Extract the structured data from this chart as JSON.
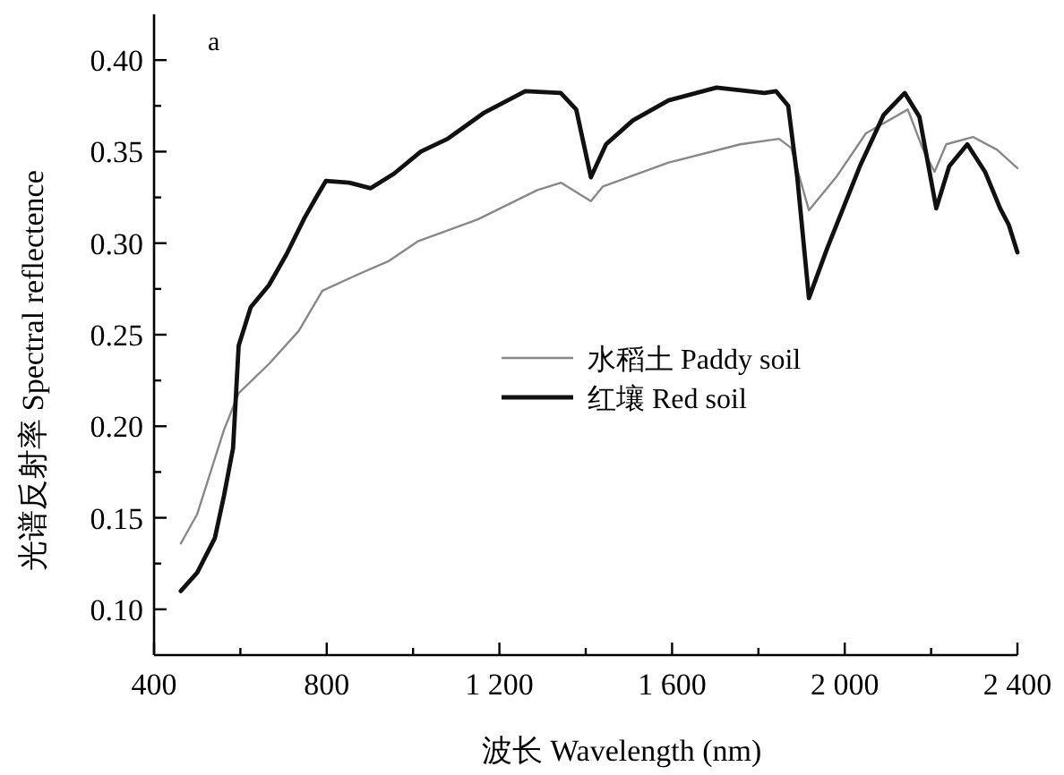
{
  "chart_data": {
    "type": "line",
    "xlabel": "波长 Wavelength (nm)",
    "ylabel": "光谱反射率 Spectral reflectence",
    "annotations": [
      "a"
    ],
    "xlim": [
      400,
      2400
    ],
    "ylim": [
      0.075,
      0.425
    ],
    "xticks": [
      400,
      {
        "value": 600,
        "label": null
      },
      800,
      {
        "value": 1000,
        "label": null
      },
      {
        "value": 1200,
        "label": "1 200"
      },
      {
        "value": 1400,
        "label": null
      },
      {
        "value": 1600,
        "label": "1 600"
      },
      {
        "value": 1800,
        "label": null
      },
      {
        "value": 2000,
        "label": "2 000"
      },
      {
        "value": 2200,
        "label": null
      },
      {
        "value": 2400,
        "label": "2 400"
      }
    ],
    "yticks": [
      {
        "value": 0.1,
        "label": "0.10"
      },
      {
        "value": 0.125,
        "label": null
      },
      {
        "value": 0.15,
        "label": "0.15"
      },
      {
        "value": 0.175,
        "label": null
      },
      {
        "value": 0.2,
        "label": "0.20"
      },
      {
        "value": 0.225,
        "label": null
      },
      {
        "value": 0.25,
        "label": "0.25"
      },
      {
        "value": 0.275,
        "label": null
      },
      {
        "value": 0.3,
        "label": "0.30"
      },
      {
        "value": 0.325,
        "label": null
      },
      {
        "value": 0.35,
        "label": "0.35"
      },
      {
        "value": 0.375,
        "label": null
      },
      {
        "value": 0.4,
        "label": "0.40"
      }
    ],
    "legend": "right",
    "grid": false,
    "series": [
      {
        "name": "水稻土 Paddy soil",
        "color": "#888888",
        "x": [
          462,
          500,
          562,
          596,
          666,
          735,
          790,
          873,
          942,
          1011,
          1150,
          1288,
          1343,
          1412,
          1440,
          1592,
          1758,
          1848,
          1876,
          1917,
          1980,
          2049,
          2146,
          2180,
          2208,
          2235,
          2297,
          2353,
          2400
        ],
        "values": [
          0.136,
          0.152,
          0.198,
          0.218,
          0.234,
          0.252,
          0.274,
          0.283,
          0.29,
          0.301,
          0.313,
          0.329,
          0.333,
          0.323,
          0.331,
          0.344,
          0.354,
          0.357,
          0.352,
          0.318,
          0.336,
          0.36,
          0.373,
          0.352,
          0.339,
          0.354,
          0.358,
          0.351,
          0.341
        ]
      },
      {
        "name": "红壤 Red soil",
        "color": "#111111",
        "x": [
          462,
          500,
          541,
          562,
          583,
          596,
          624,
          666,
          707,
          749,
          778,
          798,
          852,
          902,
          956,
          1018,
          1080,
          1163,
          1260,
          1342,
          1378,
          1412,
          1447,
          1509,
          1592,
          1703,
          1814,
          1841,
          1869,
          1890,
          1917,
          1959,
          2035,
          2090,
          2139,
          2173,
          2212,
          2242,
          2284,
          2325,
          2360,
          2380,
          2400
        ],
        "values": [
          0.11,
          0.12,
          0.139,
          0.162,
          0.188,
          0.244,
          0.265,
          0.277,
          0.294,
          0.314,
          0.326,
          0.334,
          0.333,
          0.33,
          0.338,
          0.35,
          0.357,
          0.371,
          0.383,
          0.382,
          0.373,
          0.336,
          0.354,
          0.367,
          0.378,
          0.385,
          0.382,
          0.383,
          0.375,
          0.336,
          0.27,
          0.297,
          0.342,
          0.37,
          0.382,
          0.369,
          0.319,
          0.342,
          0.354,
          0.339,
          0.319,
          0.31,
          0.295
        ]
      }
    ]
  }
}
